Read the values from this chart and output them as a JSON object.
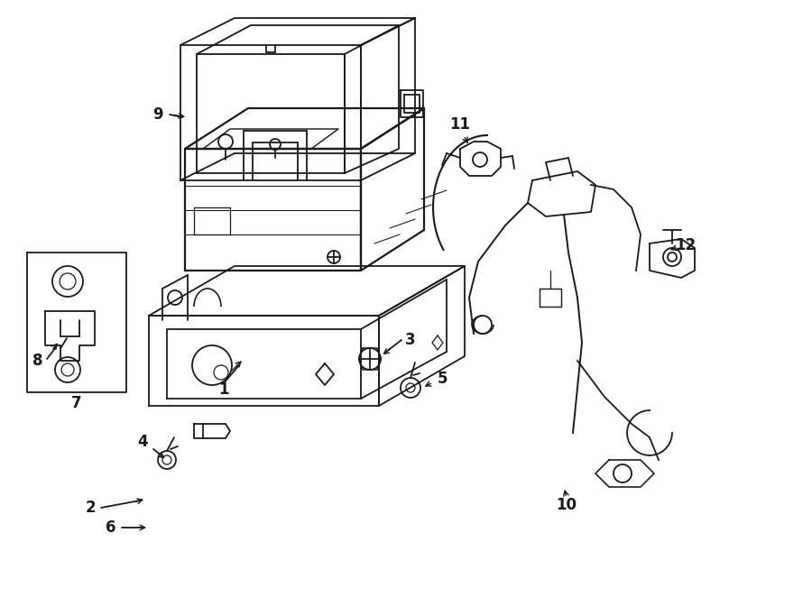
{
  "bg_color": "#ffffff",
  "line_color": "#1a1a1a",
  "fig_width": 9.0,
  "fig_height": 6.62,
  "dpi": 100,
  "lw": 1.3
}
